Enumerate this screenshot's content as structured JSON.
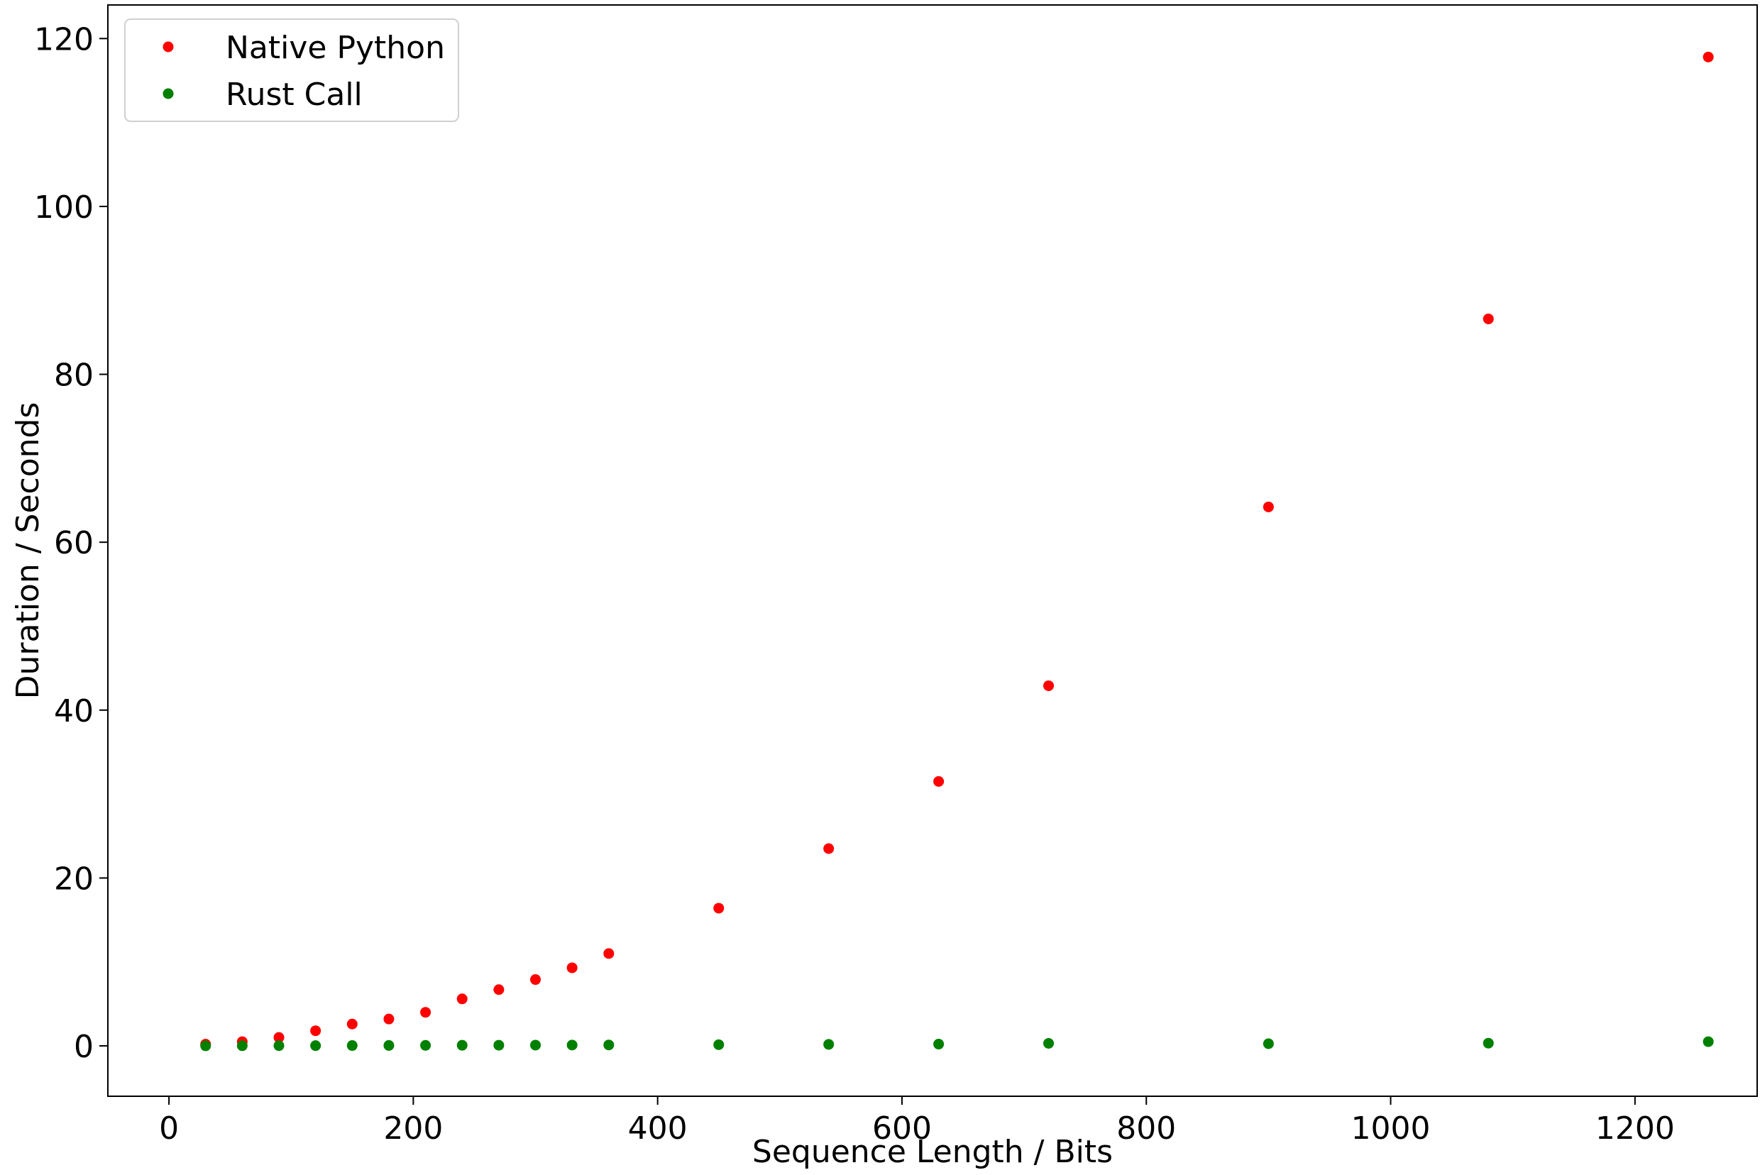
{
  "chart_data": {
    "type": "scatter",
    "title": "",
    "xlabel": "Sequence Length / Bits",
    "ylabel": "Duration / Seconds",
    "xlim": [
      -50,
      1300
    ],
    "ylim": [
      -6,
      124
    ],
    "xticks": [
      0,
      200,
      400,
      600,
      800,
      1000,
      1200
    ],
    "yticks": [
      0,
      20,
      40,
      60,
      80,
      100,
      120
    ],
    "xtick_labels": [
      "0",
      "200",
      "400",
      "600",
      "800",
      "1000",
      "1200"
    ],
    "ytick_labels": [
      "0",
      "20",
      "40",
      "60",
      "80",
      "100",
      "120"
    ],
    "grid": false,
    "legend_position": "top-left",
    "series": [
      {
        "name": "Native Python",
        "color": "#ff0000",
        "x": [
          30,
          60,
          90,
          120,
          150,
          180,
          210,
          240,
          270,
          300,
          330,
          360,
          450,
          540,
          630,
          720,
          900,
          1080,
          1260
        ],
        "y": [
          0.2,
          0.5,
          1.0,
          1.8,
          2.6,
          3.2,
          4.0,
          5.6,
          6.7,
          7.9,
          9.3,
          11.0,
          16.4,
          23.5,
          31.5,
          42.9,
          64.2,
          86.6,
          117.8
        ]
      },
      {
        "name": "Rust Call",
        "color": "#008000",
        "x": [
          30,
          60,
          90,
          120,
          150,
          180,
          210,
          240,
          270,
          300,
          330,
          360,
          450,
          540,
          630,
          720,
          900,
          1080,
          1260
        ],
        "y": [
          0.01,
          0.02,
          0.03,
          0.03,
          0.04,
          0.05,
          0.06,
          0.07,
          0.08,
          0.09,
          0.1,
          0.11,
          0.14,
          0.18,
          0.21,
          0.3,
          0.26,
          0.32,
          0.5
        ]
      }
    ]
  }
}
